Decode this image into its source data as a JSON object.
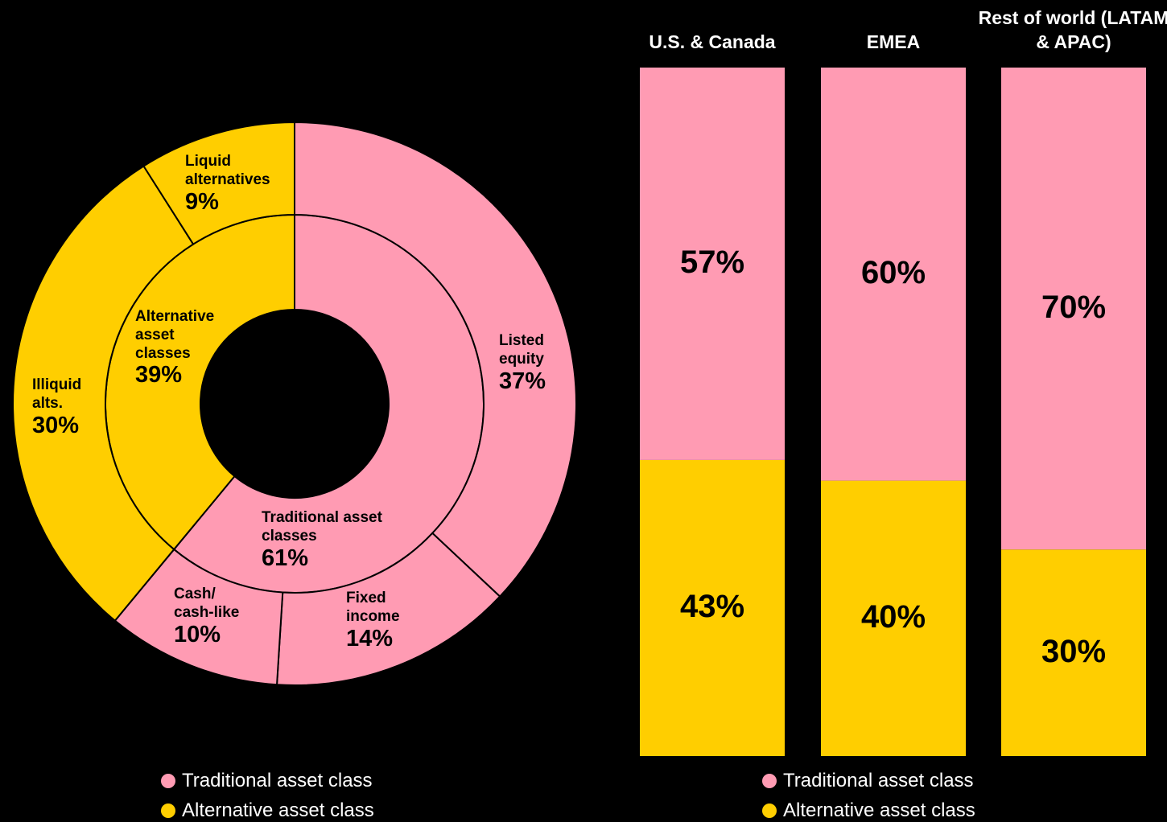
{
  "chart_data": [
    {
      "type": "donut",
      "rings": [
        {
          "labels": [
            "Traditional asset classes",
            "Alternative asset classes"
          ],
          "values": [
            61,
            39
          ],
          "value_labels": [
            "61%",
            "39%"
          ],
          "colors": [
            "#ff9bb3",
            "#ffce00"
          ]
        },
        {
          "labels": [
            "Listed equity",
            "Fixed income",
            "Cash/ cash-like",
            "Illiquid alts.",
            "Liquid alternatives"
          ],
          "values": [
            37,
            14,
            10,
            30,
            9
          ],
          "value_labels": [
            "37%",
            "14%",
            "10%",
            "30%",
            "9%"
          ],
          "colors": [
            "#ff9bb3",
            "#ff9bb3",
            "#ff9bb3",
            "#ffce00",
            "#ffce00"
          ]
        }
      ],
      "legend": [
        {
          "name": "Traditional asset class",
          "color": "#ff9bb3"
        },
        {
          "name": "Alternative asset class",
          "color": "#ffce00"
        }
      ]
    },
    {
      "type": "bar",
      "stacked": true,
      "categories": [
        "U.S. & Canada",
        "EMEA",
        "Rest of world (LATAM & APAC)"
      ],
      "series": [
        {
          "name": "Traditional asset class",
          "color": "#ff9bb3",
          "values": [
            57,
            60,
            70
          ],
          "value_labels": [
            "57%",
            "60%",
            "70%"
          ]
        },
        {
          "name": "Alternative asset class",
          "color": "#ffce00",
          "values": [
            43,
            40,
            30
          ],
          "value_labels": [
            "43%",
            "40%",
            "30%"
          ]
        }
      ]
    }
  ]
}
